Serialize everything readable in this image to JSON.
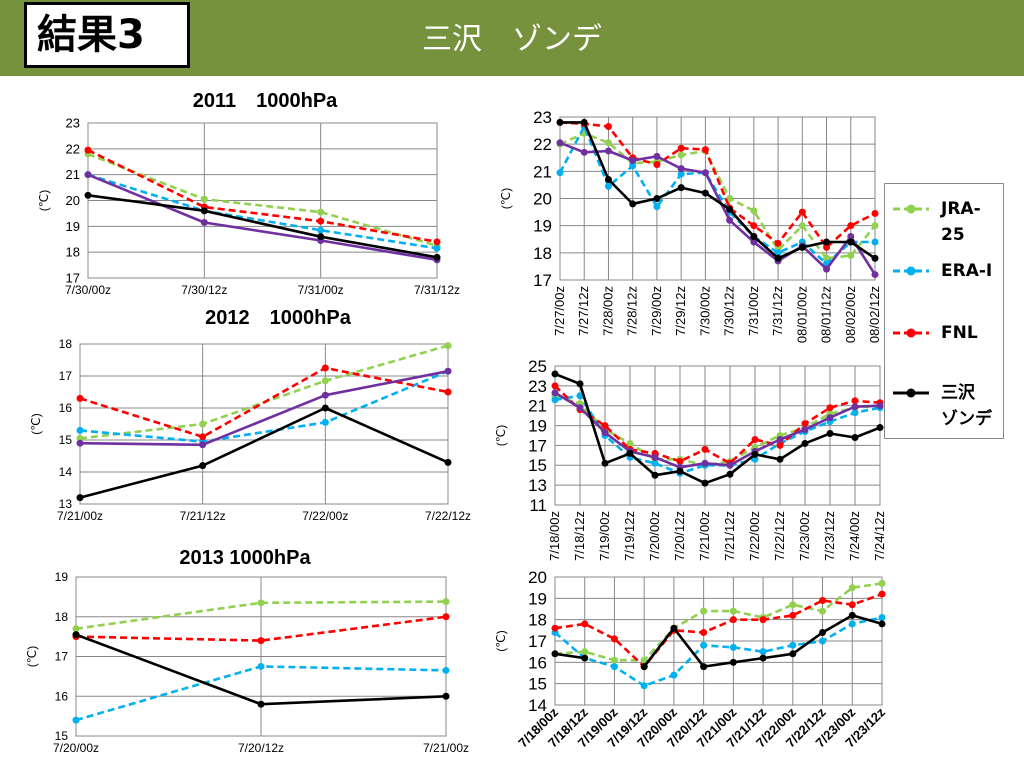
{
  "header": {
    "badge": "結果3",
    "title": "三沢　ゾンデ",
    "color": "#76923c"
  },
  "series_styles": {
    "JRA-25": {
      "color": "#92d050",
      "dash": true
    },
    "ERA-I": {
      "color": "#00b0f0",
      "dash": true
    },
    "FNL": {
      "color": "#ff0000",
      "dash": true
    },
    "三沢ゾンデ": {
      "color": "#000000",
      "dash": false
    },
    "その他": {
      "color": "#7030a0",
      "dash": false
    }
  },
  "legend": {
    "items": [
      {
        "label": "JRA-25",
        "color": "#92d050",
        "dash": true
      },
      {
        "label": "ERA-I",
        "color": "#00b0f0",
        "dash": true
      },
      {
        "label": "FNL",
        "color": "#ff0000",
        "dash": true
      },
      {
        "label": "三沢\nゾンデ",
        "color": "#000000",
        "dash": false
      }
    ]
  },
  "chart_data": [
    {
      "type": "line",
      "title": "2011　1000hPa",
      "ylabel": "(℃)",
      "ylim": [
        17,
        23
      ],
      "yticks": [
        17,
        18,
        19,
        20,
        21,
        22,
        23
      ],
      "categories": [
        "7/30/00z",
        "7/30/12z",
        "7/31/00z",
        "7/31/12z"
      ],
      "series": [
        {
          "key": "JRA-25",
          "values": [
            21.8,
            20.05,
            19.55,
            18.25
          ]
        },
        {
          "key": "ERA-I",
          "values": [
            21.0,
            19.6,
            18.85,
            18.15
          ]
        },
        {
          "key": "FNL",
          "values": [
            21.95,
            19.75,
            19.2,
            18.4
          ]
        },
        {
          "key": "その他",
          "values": [
            21.0,
            19.15,
            18.45,
            17.7
          ]
        },
        {
          "key": "三沢ゾンデ",
          "values": [
            20.2,
            19.6,
            18.6,
            17.8
          ]
        }
      ]
    },
    {
      "type": "line",
      "title": "2012　1000hPa",
      "ylabel": "(℃)",
      "ylim": [
        13,
        18
      ],
      "yticks": [
        13,
        14,
        15,
        16,
        17,
        18
      ],
      "categories": [
        "7/21/00z",
        "7/21/12z",
        "7/22/00z",
        "7/22/12z"
      ],
      "series": [
        {
          "key": "JRA-25",
          "values": [
            15.05,
            15.5,
            16.85,
            17.95
          ]
        },
        {
          "key": "ERA-I",
          "values": [
            15.3,
            14.95,
            15.55,
            17.15
          ]
        },
        {
          "key": "FNL",
          "values": [
            16.3,
            15.1,
            17.25,
            16.5
          ]
        },
        {
          "key": "その他",
          "values": [
            14.9,
            14.85,
            16.4,
            17.15
          ]
        },
        {
          "key": "三沢ゾンデ",
          "values": [
            13.2,
            14.2,
            16.0,
            14.3
          ]
        }
      ]
    },
    {
      "type": "line",
      "title": "2013 1000hPa",
      "ylabel": "(℃)",
      "ylim": [
        15,
        19
      ],
      "yticks": [
        15,
        16,
        17,
        18,
        19
      ],
      "categories": [
        "7/20/00z",
        "7/20/12z",
        "7/21/00z"
      ],
      "series": [
        {
          "key": "JRA-25",
          "values": [
            17.7,
            18.35,
            18.38
          ]
        },
        {
          "key": "ERA-I",
          "values": [
            15.4,
            16.75,
            16.65
          ]
        },
        {
          "key": "FNL",
          "values": [
            17.5,
            17.4,
            18.0
          ]
        },
        {
          "key": "三沢ゾンデ",
          "values": [
            17.55,
            15.8,
            16.0
          ]
        }
      ]
    },
    {
      "type": "line",
      "title": "",
      "ylabel": "(℃)",
      "ylim": [
        17,
        23
      ],
      "yticks": [
        17,
        18,
        19,
        20,
        21,
        22,
        23
      ],
      "categories": [
        "7/27/00z",
        "7/27/12z",
        "7/28/00z",
        "7/28/12z",
        "7/29/00z",
        "7/29/12z",
        "7/30/00z",
        "7/30/12z",
        "7/31/00z",
        "7/31/12z",
        "08/01/00z",
        "08/01/12z",
        "08/02/00z",
        "08/02/12z"
      ],
      "series": [
        {
          "key": "JRA-25",
          "values": [
            22.0,
            22.4,
            22.05,
            21.3,
            21.35,
            21.6,
            21.75,
            20.0,
            19.55,
            18.1,
            19.0,
            17.8,
            17.9,
            19.0
          ]
        },
        {
          "key": "ERA-I",
          "values": [
            20.95,
            22.65,
            20.45,
            21.2,
            19.7,
            20.9,
            20.95,
            19.5,
            18.6,
            18.0,
            18.4,
            17.6,
            18.4,
            18.4
          ]
        },
        {
          "key": "FNL",
          "values": [
            22.8,
            22.75,
            22.65,
            21.5,
            21.25,
            21.85,
            21.8,
            19.65,
            19.0,
            18.35,
            19.5,
            18.2,
            19.0,
            19.45
          ]
        },
        {
          "key": "その他",
          "values": [
            22.05,
            21.7,
            21.75,
            21.4,
            21.55,
            21.1,
            20.95,
            19.2,
            18.4,
            17.7,
            18.25,
            17.4,
            18.6,
            17.2
          ]
        },
        {
          "key": "三沢ゾンデ",
          "values": [
            22.8,
            22.8,
            20.7,
            19.8,
            20.0,
            20.4,
            20.2,
            19.6,
            18.6,
            17.8,
            18.2,
            18.4,
            18.4,
            17.8
          ]
        }
      ]
    },
    {
      "type": "line",
      "title": "",
      "ylabel": "(℃)",
      "ylim": [
        11,
        25
      ],
      "yticks": [
        11,
        13,
        15,
        17,
        19,
        21,
        23,
        25
      ],
      "categories": [
        "7/18/00z",
        "7/18/12z",
        "7/19/00z",
        "7/19/12z",
        "7/20/00z",
        "7/20/12z",
        "7/21/00z",
        "7/21/12z",
        "7/22/00z",
        "7/22/12z",
        "7/23/00z",
        "7/23/12z",
        "7/24/00z",
        "7/24/12z"
      ],
      "series": [
        {
          "key": "JRA-25",
          "values": [
            22.0,
            21.2,
            18.6,
            17.2,
            15.6,
            15.6,
            15.0,
            15.4,
            16.8,
            18.0,
            18.8,
            20.2,
            20.8,
            21.0
          ]
        },
        {
          "key": "ERA-I",
          "values": [
            21.6,
            22.0,
            18.0,
            15.8,
            15.2,
            14.2,
            15.0,
            15.0,
            15.6,
            17.2,
            18.4,
            19.4,
            20.3,
            20.8
          ]
        },
        {
          "key": "FNL",
          "values": [
            23.0,
            20.6,
            19.0,
            16.6,
            16.2,
            15.4,
            16.6,
            15.2,
            17.6,
            17.0,
            19.2,
            20.8,
            21.5,
            21.3
          ]
        },
        {
          "key": "その他",
          "values": [
            22.3,
            20.8,
            18.3,
            16.4,
            15.8,
            14.8,
            15.2,
            15.0,
            16.4,
            17.6,
            18.6,
            19.8,
            20.9,
            21.0
          ]
        },
        {
          "key": "三沢ゾンデ",
          "values": [
            24.2,
            23.2,
            15.2,
            16.2,
            14.0,
            14.4,
            13.2,
            14.1,
            16.1,
            15.6,
            17.2,
            18.2,
            17.8,
            18.8
          ]
        }
      ]
    },
    {
      "type": "line",
      "title": "",
      "ylabel": "(℃)",
      "ylim": [
        14,
        20
      ],
      "yticks": [
        14,
        15,
        16,
        17,
        18,
        19,
        20
      ],
      "categories": [
        "7/18/00z",
        "7/18/12z",
        "7/19/00z",
        "7/19/12z",
        "7/20/00z",
        "7/20/12z",
        "7/21/00z",
        "7/21/12z",
        "7/22/00z",
        "7/22/12z",
        "7/23/00z",
        "7/23/12z"
      ],
      "series": [
        {
          "key": "JRA-25",
          "values": [
            16.4,
            16.5,
            16.1,
            16.1,
            17.6,
            18.4,
            18.4,
            18.1,
            18.7,
            18.4,
            19.5,
            19.7
          ]
        },
        {
          "key": "ERA-I",
          "values": [
            17.4,
            16.2,
            15.8,
            14.9,
            15.4,
            16.8,
            16.7,
            16.5,
            16.8,
            17.0,
            17.8,
            18.1
          ]
        },
        {
          "key": "FNL",
          "values": [
            17.6,
            17.8,
            17.1,
            15.8,
            17.5,
            17.4,
            18.0,
            18.0,
            18.2,
            18.9,
            18.7,
            19.2
          ]
        },
        {
          "key": "三沢ゾンデ",
          "values": [
            16.4,
            16.2,
            null,
            15.8,
            17.6,
            15.8,
            16.0,
            16.2,
            16.4,
            17.4,
            18.2,
            17.8
          ]
        }
      ]
    }
  ]
}
